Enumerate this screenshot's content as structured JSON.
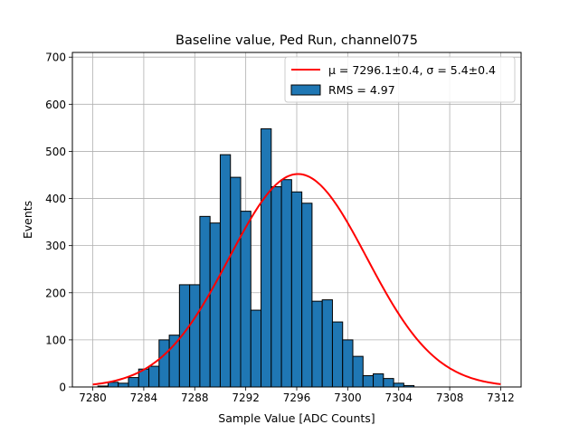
{
  "chart_data": {
    "type": "bar",
    "title": "Baseline value, Ped Run, channel075",
    "xlabel": "Sample Value [ADC Counts]",
    "ylabel": "Events",
    "xlim": [
      7278.4,
      7313.6
    ],
    "ylim": [
      0,
      710
    ],
    "xticks": [
      7280,
      7284,
      7288,
      7292,
      7296,
      7300,
      7304,
      7308,
      7312
    ],
    "yticks": [
      0,
      100,
      200,
      300,
      400,
      500,
      600,
      700
    ],
    "grid": true,
    "legend_position": "upper right",
    "bin_width": 0.8,
    "histogram": {
      "name": "RMS = 4.97",
      "color": "#1f77b4",
      "edgecolor": "#000000",
      "bin_edges_start": 7280.4,
      "counts": [
        2,
        10,
        8,
        20,
        38,
        44,
        100,
        110,
        217,
        217,
        362,
        348,
        493,
        445,
        373,
        163,
        548,
        425,
        440,
        414,
        390,
        182,
        185,
        138,
        100,
        65,
        24,
        28,
        18,
        8,
        3
      ]
    },
    "fit": {
      "name_prefix": "μ = 7296.1±0.4, ",
      "name_sigma": "σ = 5.4±0.4",
      "color": "#ff0000",
      "mu": 7296.1,
      "sigma": 5.4,
      "amplitude": 452,
      "x_range": [
        7280,
        7312
      ]
    }
  }
}
